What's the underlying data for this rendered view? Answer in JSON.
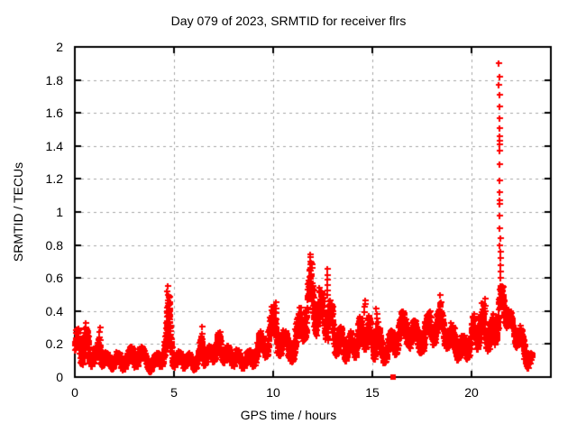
{
  "page": {
    "background": "#ffffff"
  },
  "chart_data": {
    "type": "scatter",
    "title": "Day 079 of 2023, SRMTID for receiver flrs",
    "xlabel": "GPS time / hours",
    "ylabel": "SRMTID / TECUs",
    "xlim": [
      0,
      24
    ],
    "ylim": [
      0,
      2
    ],
    "xticks": [
      "0",
      "5",
      "10",
      "15",
      "20"
    ],
    "yticks": [
      "0",
      "0.2",
      "0.4",
      "0.6",
      "0.8",
      "1",
      "1.2",
      "1.4",
      "1.6",
      "1.8",
      "2"
    ],
    "grid": true,
    "legend": "none",
    "axis_color": "#000000",
    "grid_color": "#a6a6a6",
    "series": [
      {
        "name": "srmtid",
        "marker": "plus",
        "color": "#ff0000",
        "samples_per_hour": 120,
        "t_start": 0.0,
        "t_end": 23.05,
        "seed": 11,
        "envelope": [
          [
            0.0,
            0.08,
            0.28
          ],
          [
            0.25,
            0.08,
            0.3
          ],
          [
            0.5,
            0.07,
            0.33
          ],
          [
            0.7,
            0.07,
            0.25
          ],
          [
            0.9,
            0.06,
            0.2
          ],
          [
            1.1,
            0.06,
            0.18
          ],
          [
            1.25,
            0.08,
            0.3
          ],
          [
            1.45,
            0.05,
            0.16
          ],
          [
            1.7,
            0.04,
            0.14
          ],
          [
            2.0,
            0.05,
            0.16
          ],
          [
            2.3,
            0.04,
            0.14
          ],
          [
            2.6,
            0.05,
            0.17
          ],
          [
            2.9,
            0.06,
            0.19
          ],
          [
            3.2,
            0.06,
            0.22
          ],
          [
            3.5,
            0.05,
            0.16
          ],
          [
            3.8,
            0.03,
            0.12
          ],
          [
            4.1,
            0.04,
            0.14
          ],
          [
            4.4,
            0.06,
            0.2
          ],
          [
            4.6,
            0.1,
            0.33
          ],
          [
            4.72,
            0.12,
            0.5
          ],
          [
            4.85,
            0.08,
            0.3
          ],
          [
            5.0,
            0.06,
            0.18
          ],
          [
            5.3,
            0.05,
            0.15
          ],
          [
            5.6,
            0.05,
            0.17
          ],
          [
            5.9,
            0.04,
            0.13
          ],
          [
            6.2,
            0.05,
            0.15
          ],
          [
            6.4,
            0.07,
            0.28
          ],
          [
            6.7,
            0.07,
            0.18
          ],
          [
            7.0,
            0.09,
            0.22
          ],
          [
            7.3,
            0.1,
            0.28
          ],
          [
            7.6,
            0.08,
            0.2
          ],
          [
            7.9,
            0.07,
            0.18
          ],
          [
            8.2,
            0.06,
            0.17
          ],
          [
            8.5,
            0.05,
            0.15
          ],
          [
            8.8,
            0.05,
            0.16
          ],
          [
            9.1,
            0.07,
            0.22
          ],
          [
            9.35,
            0.09,
            0.28
          ],
          [
            9.6,
            0.12,
            0.3
          ],
          [
            9.9,
            0.14,
            0.4
          ],
          [
            10.1,
            0.15,
            0.45
          ],
          [
            10.35,
            0.12,
            0.32
          ],
          [
            10.6,
            0.1,
            0.28
          ],
          [
            10.9,
            0.08,
            0.25
          ],
          [
            11.2,
            0.14,
            0.35
          ],
          [
            11.45,
            0.2,
            0.48
          ],
          [
            11.7,
            0.25,
            0.58
          ],
          [
            11.9,
            0.28,
            0.7
          ],
          [
            12.1,
            0.27,
            0.6
          ],
          [
            12.3,
            0.22,
            0.55
          ],
          [
            12.5,
            0.2,
            0.5
          ],
          [
            12.7,
            0.24,
            0.6
          ],
          [
            12.9,
            0.18,
            0.45
          ],
          [
            13.1,
            0.14,
            0.4
          ],
          [
            13.35,
            0.1,
            0.32
          ],
          [
            13.6,
            0.09,
            0.25
          ],
          [
            13.9,
            0.1,
            0.28
          ],
          [
            14.2,
            0.12,
            0.32
          ],
          [
            14.5,
            0.15,
            0.4
          ],
          [
            14.65,
            0.17,
            0.45
          ],
          [
            14.9,
            0.12,
            0.33
          ],
          [
            15.2,
            0.1,
            0.38
          ],
          [
            15.45,
            0.08,
            0.25
          ],
          [
            15.75,
            0.09,
            0.24
          ],
          [
            16.05,
            0.12,
            0.3
          ],
          [
            16.35,
            0.15,
            0.38
          ],
          [
            16.7,
            0.2,
            0.42
          ],
          [
            17.0,
            0.16,
            0.35
          ],
          [
            17.3,
            0.14,
            0.33
          ],
          [
            17.6,
            0.15,
            0.35
          ],
          [
            17.9,
            0.18,
            0.4
          ],
          [
            18.15,
            0.2,
            0.42
          ],
          [
            18.4,
            0.22,
            0.45
          ],
          [
            18.7,
            0.18,
            0.38
          ],
          [
            19.0,
            0.14,
            0.32
          ],
          [
            19.3,
            0.1,
            0.28
          ],
          [
            19.6,
            0.08,
            0.24
          ],
          [
            19.9,
            0.12,
            0.32
          ],
          [
            20.2,
            0.15,
            0.4
          ],
          [
            20.45,
            0.18,
            0.45
          ],
          [
            20.7,
            0.18,
            0.44
          ],
          [
            21.0,
            0.12,
            0.35
          ],
          [
            21.2,
            0.18,
            0.42
          ],
          [
            21.38,
            0.3,
            0.55
          ],
          [
            21.55,
            0.35,
            0.55
          ],
          [
            21.75,
            0.3,
            0.48
          ],
          [
            21.95,
            0.28,
            0.4
          ],
          [
            22.15,
            0.22,
            0.33
          ],
          [
            22.35,
            0.15,
            0.33
          ],
          [
            22.55,
            0.1,
            0.28
          ],
          [
            22.75,
            0.06,
            0.22
          ],
          [
            22.95,
            0.04,
            0.16
          ],
          [
            23.05,
            0.05,
            0.14
          ]
        ],
        "columns": [
          [
            0.52,
            0.24,
            0.33,
            4
          ],
          [
            1.26,
            0.22,
            0.3,
            4
          ],
          [
            4.65,
            0.3,
            0.55,
            9
          ],
          [
            4.76,
            0.28,
            0.48,
            7
          ],
          [
            6.42,
            0.16,
            0.3,
            5
          ],
          [
            9.92,
            0.3,
            0.42,
            5
          ],
          [
            10.12,
            0.32,
            0.45,
            5
          ],
          [
            11.87,
            0.58,
            0.75,
            7
          ],
          [
            12.72,
            0.5,
            0.65,
            6
          ],
          [
            14.62,
            0.4,
            0.47,
            4
          ],
          [
            15.22,
            0.18,
            0.42,
            8
          ],
          [
            18.42,
            0.42,
            0.49,
            3
          ],
          [
            20.68,
            0.4,
            0.47,
            3
          ]
        ],
        "spike_points": [
          [
            21.38,
            1.9
          ],
          [
            21.39,
            1.82
          ],
          [
            21.38,
            1.77
          ],
          [
            21.4,
            1.71
          ],
          [
            21.39,
            1.64
          ],
          [
            21.4,
            1.57
          ],
          [
            21.41,
            1.51
          ],
          [
            21.4,
            1.46
          ],
          [
            21.41,
            1.43
          ],
          [
            21.39,
            1.41
          ],
          [
            21.4,
            1.37
          ],
          [
            21.41,
            1.29
          ],
          [
            21.42,
            1.19
          ],
          [
            21.42,
            1.12
          ],
          [
            21.41,
            1.07
          ],
          [
            21.43,
            1.05
          ],
          [
            21.42,
            0.98
          ],
          [
            21.43,
            0.9
          ],
          [
            21.44,
            0.84
          ],
          [
            21.43,
            0.8
          ],
          [
            21.44,
            0.76
          ],
          [
            21.45,
            0.72
          ],
          [
            21.44,
            0.68
          ],
          [
            21.46,
            0.64
          ],
          [
            21.45,
            0.6
          ]
        ]
      },
      {
        "name": "flagged",
        "marker": "square",
        "color": "#ff0000",
        "points": [
          [
            16.05,
            0.0
          ]
        ]
      }
    ]
  }
}
